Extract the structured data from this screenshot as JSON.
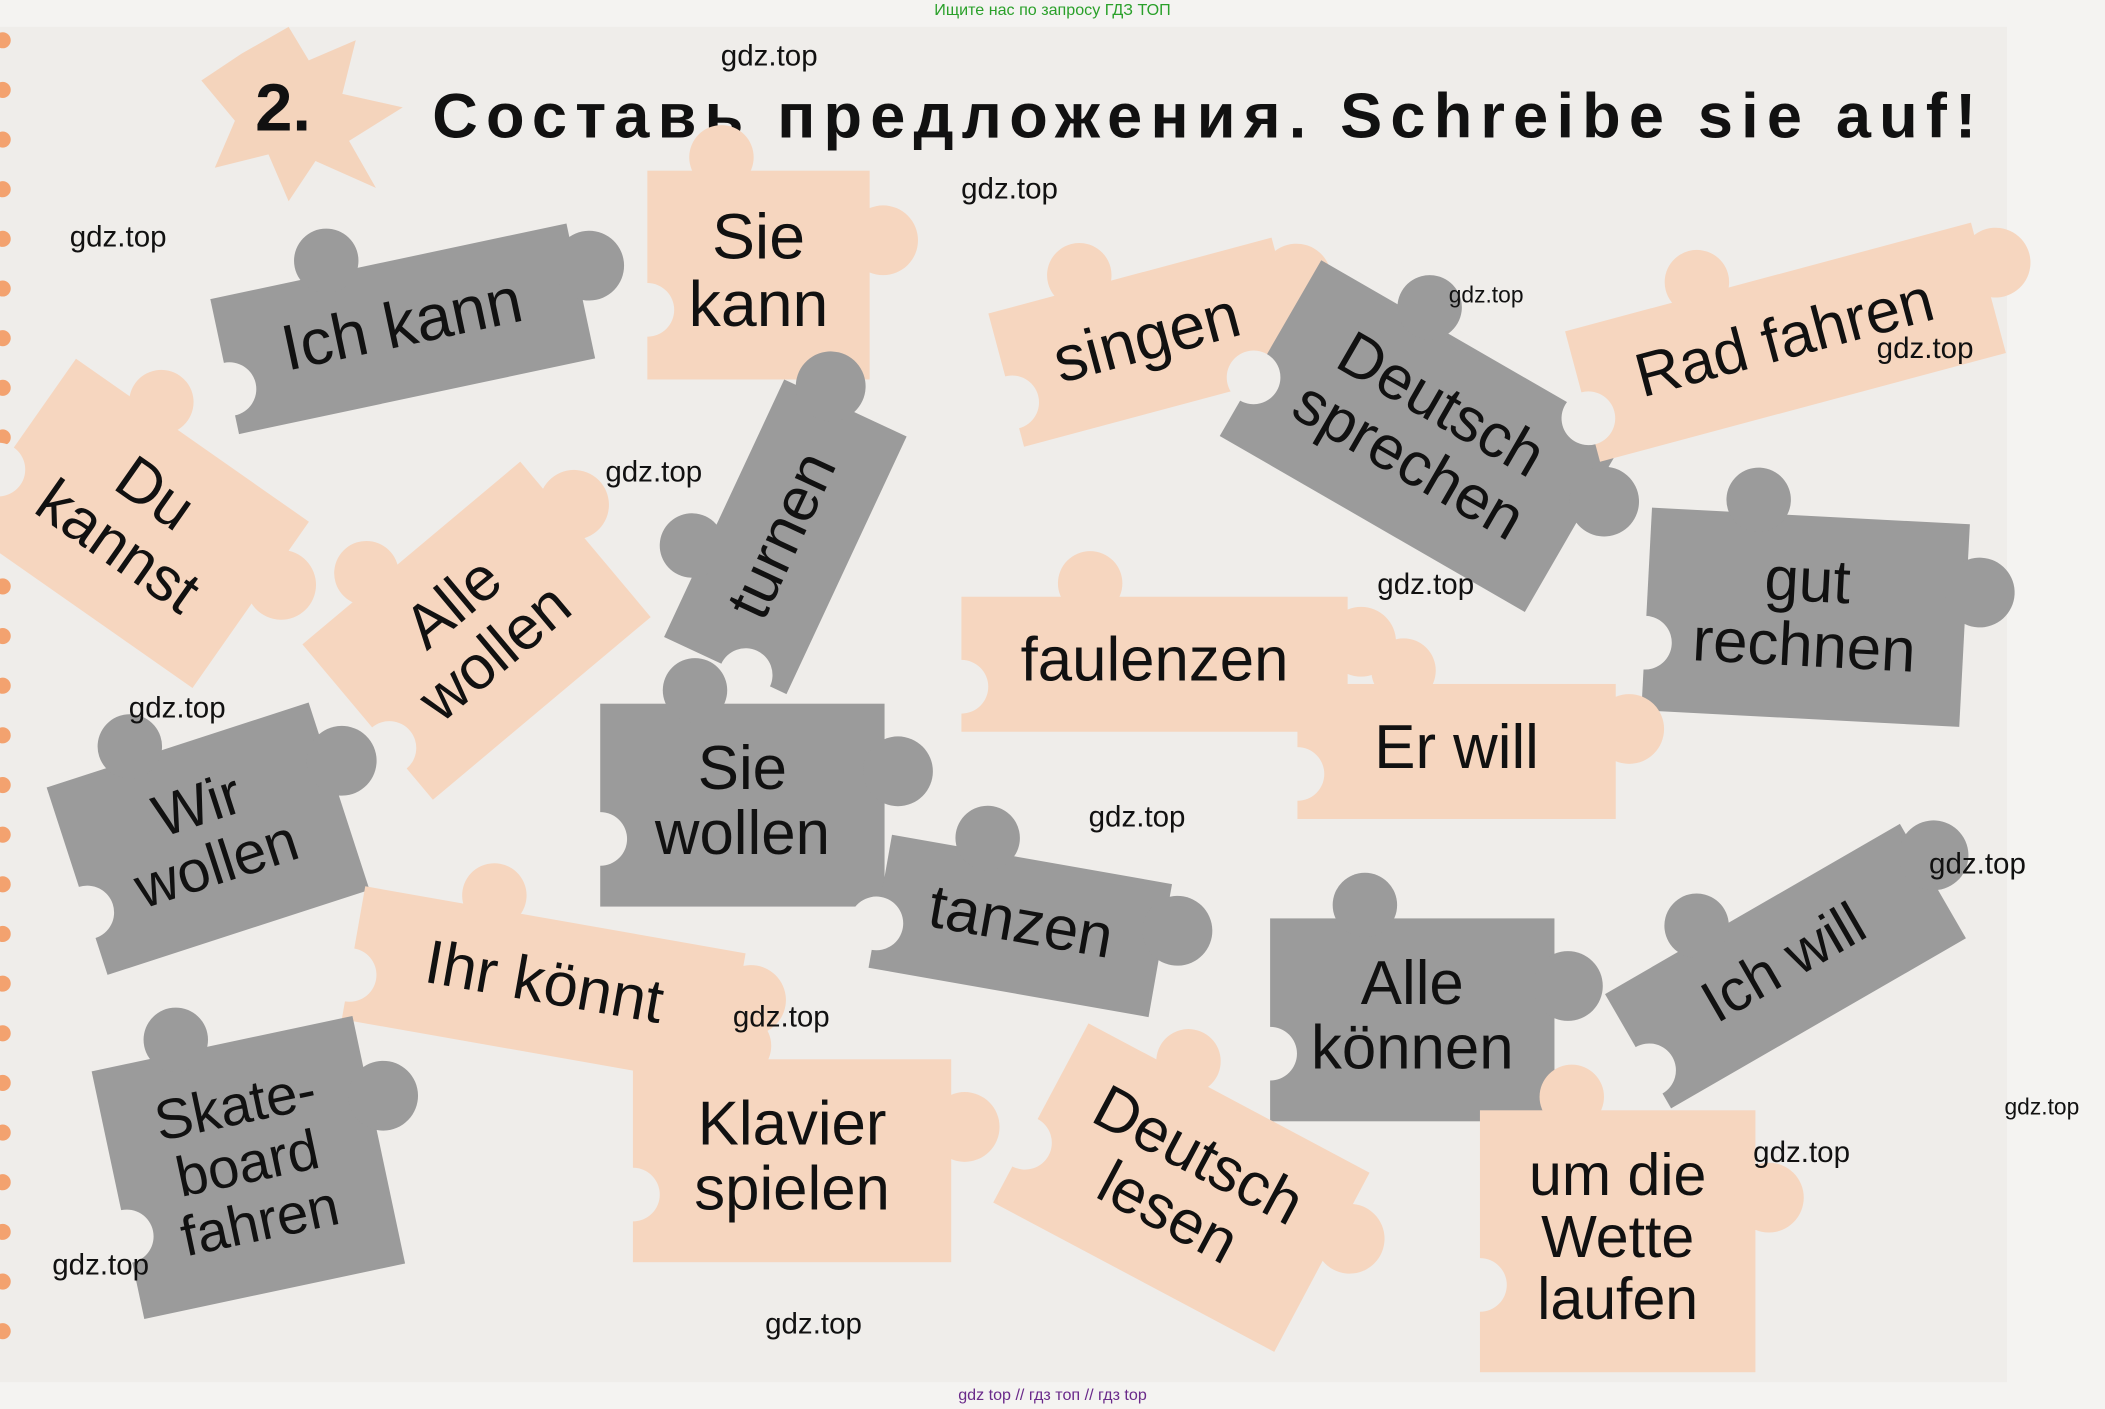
{
  "header": {
    "notice": "Ищите нас по запросу ГДЗ ТОП",
    "number": "2.",
    "title": "Составь предложения. Schreibe sie auf!"
  },
  "pieces": [
    {
      "lines": [
        "Ich kann"
      ]
    },
    {
      "lines": [
        "Sie",
        "kann"
      ]
    },
    {
      "lines": [
        "singen"
      ]
    },
    {
      "lines": [
        "Deutsch",
        "sprechen"
      ]
    },
    {
      "lines": [
        "Rad fahren"
      ]
    },
    {
      "lines": [
        "Du",
        "kannst"
      ]
    },
    {
      "lines": [
        "Alle",
        "wollen"
      ]
    },
    {
      "lines": [
        "turnen"
      ]
    },
    {
      "lines": [
        "faulenzen"
      ]
    },
    {
      "lines": [
        "gut",
        "rechnen"
      ]
    },
    {
      "lines": [
        "Er will"
      ]
    },
    {
      "lines": [
        "Wir",
        "wollen"
      ]
    },
    {
      "lines": [
        "Sie",
        "wollen"
      ]
    },
    {
      "lines": [
        "tanzen"
      ]
    },
    {
      "lines": [
        "Ihr könnt"
      ]
    },
    {
      "lines": [
        "Alle",
        "können"
      ]
    },
    {
      "lines": [
        "Ich will"
      ]
    },
    {
      "lines": [
        "Skate-",
        "board",
        "fahren"
      ]
    },
    {
      "lines": [
        "Klavier",
        "spielen"
      ]
    },
    {
      "lines": [
        "Deutsch",
        "lesen"
      ]
    },
    {
      "lines": [
        "um die",
        "Wette",
        "laufen"
      ]
    }
  ],
  "watermarks": [
    "gdz.top",
    "gdz.top",
    "gdz.top",
    "gdz.top",
    "gdz.top",
    "gdz.top",
    "gdz.top",
    "gdz.top",
    "gdz.top",
    "gdz.top",
    "gdz.top",
    "gdz.top",
    "gdz.top",
    "gdz.top",
    "gdz.top"
  ],
  "footer": "gdz top // гдз топ // гдз top"
}
